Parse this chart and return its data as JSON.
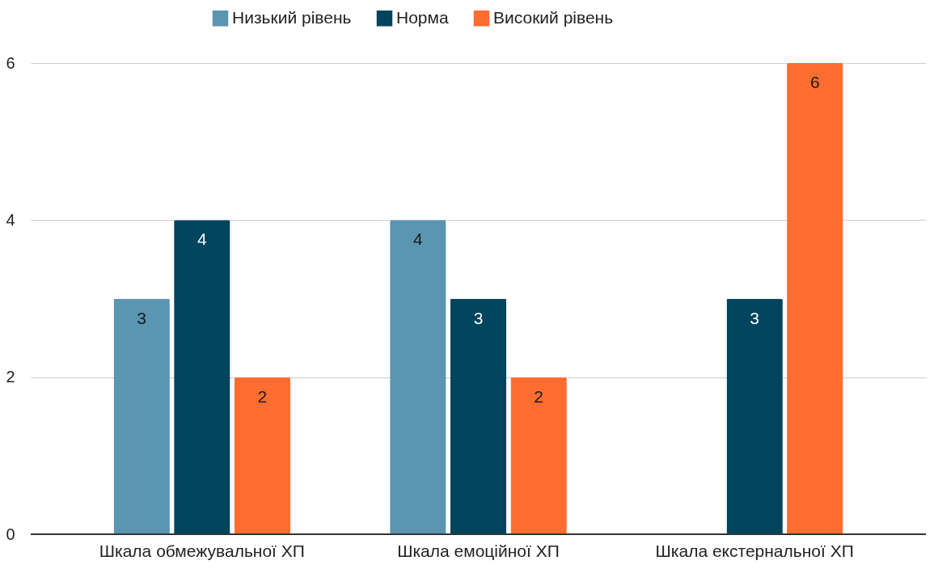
{
  "chart_data": {
    "type": "bar",
    "categories": [
      "Шкала обмежувальної ХП",
      "Шкала емоційної ХП",
      "Шкала екстернальної ХП"
    ],
    "series": [
      {
        "name": "Низький рівень",
        "color": "#5a95b2",
        "values": [
          3,
          4,
          null
        ]
      },
      {
        "name": "Норма",
        "color": "#00445e",
        "values": [
          4,
          3,
          3
        ]
      },
      {
        "name": "Високий рівень",
        "color": "#ff6d31",
        "values": [
          2,
          2,
          6
        ]
      }
    ],
    "ylim": [
      0,
      6
    ],
    "yticks": [
      0,
      2,
      4,
      6
    ],
    "grid": "y",
    "legend": "top",
    "data_labels": true
  }
}
